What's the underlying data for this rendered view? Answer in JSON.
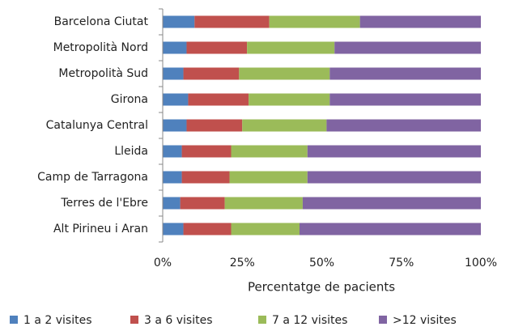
{
  "chart_data": {
    "type": "stacked-bar-horizontal",
    "x_label": "Percentatge de pacients",
    "categories": [
      "Barcelona Ciutat",
      "Metropolità Nord",
      "Metropolità Sud",
      "Girona",
      "Catalunya Central",
      "Lleida",
      "Camp de Tarragona",
      "Terres de l'Ebre",
      "Alt Pirineu i Aran"
    ],
    "series": [
      {
        "name": "1 a 2 visites",
        "color": "#4f81bd",
        "values": [
          10,
          7.5,
          6.5,
          8,
          7.5,
          6,
          6,
          5.5,
          6.5
        ]
      },
      {
        "name": "3 a 6 visites",
        "color": "#c0504d",
        "values": [
          23.5,
          19,
          17.5,
          19,
          17.5,
          15.5,
          15,
          14,
          15
        ]
      },
      {
        "name": "7 a 12 visites",
        "color": "#9bbb59",
        "values": [
          28.5,
          27.5,
          28.5,
          25.5,
          26.5,
          24,
          24.5,
          24.5,
          21.5
        ]
      },
      {
        "name": ">12 visites",
        "color": "#8064a2",
        "values": [
          38,
          46,
          47.5,
          47.5,
          48.5,
          54.5,
          54.5,
          56,
          57
        ]
      }
    ],
    "xlim": [
      0,
      100
    ],
    "xticks": [
      {
        "value": 0,
        "label": "0%"
      },
      {
        "value": 25,
        "label": "25%"
      },
      {
        "value": 50,
        "label": "50%"
      },
      {
        "value": 75,
        "label": "75%"
      },
      {
        "value": 100,
        "label": "100%"
      }
    ],
    "legend": "bottom"
  }
}
